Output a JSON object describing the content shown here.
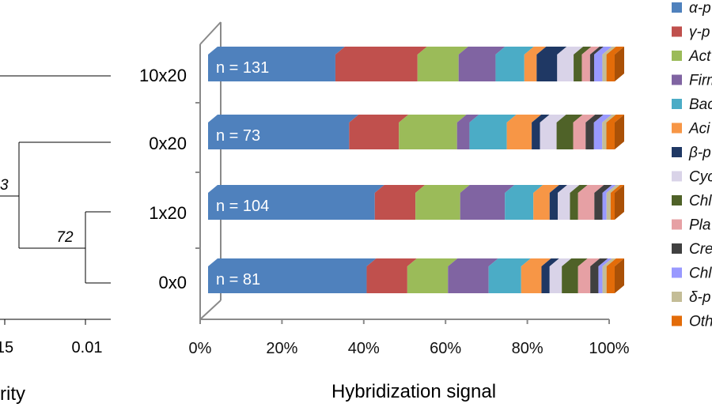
{
  "chart_data": [
    {
      "type": "dendrogram",
      "leaves": [
        "10x20",
        "0x20",
        "1x20",
        "0x0"
      ],
      "support_labels": [
        "3",
        "72"
      ],
      "tick_labels": [
        "15",
        "0.01"
      ],
      "xlabel": "rity"
    },
    {
      "type": "bar",
      "stacked": true,
      "percent": true,
      "xlabel": "Hybridization signal",
      "xlim": [
        0,
        100
      ],
      "x_ticks": [
        "0%",
        "20%",
        "40%",
        "60%",
        "80%",
        "100%"
      ],
      "categories": [
        "10x20",
        "0x20",
        "1x20",
        "0x0"
      ],
      "n_labels": [
        "n = 131",
        "n = 73",
        "n = 104",
        "n = 81"
      ],
      "legend_position": "right",
      "series": [
        {
          "name": "α-p",
          "color": "#4f81bd",
          "values": [
            31,
            34,
            41,
            39
          ]
        },
        {
          "name": "γ-p",
          "color": "#c0504d",
          "values": [
            20,
            12,
            10,
            10
          ]
        },
        {
          "name": "Act",
          "color": "#9bbb59",
          "values": [
            10,
            14,
            11,
            10
          ]
        },
        {
          "name": "Firm",
          "color": "#8064a2",
          "values": [
            9,
            3,
            11,
            10
          ]
        },
        {
          "name": "Bac",
          "color": "#4bacc6",
          "values": [
            7,
            9,
            7,
            8
          ]
        },
        {
          "name": "Aci",
          "color": "#f79646",
          "values": [
            3,
            6,
            4,
            5
          ]
        },
        {
          "name": "β-p",
          "color": "#1f3864",
          "values": [
            5,
            2,
            2,
            2
          ]
        },
        {
          "name": "Cyc",
          "color": "#d9d3e8",
          "values": [
            4,
            4,
            3,
            3
          ]
        },
        {
          "name": "Chl",
          "color": "#4f6228",
          "values": [
            2,
            4,
            2,
            4
          ]
        },
        {
          "name": "Pla",
          "color": "#e6a0a4",
          "values": [
            2,
            3,
            4,
            3
          ]
        },
        {
          "name": "Cre",
          "color": "#404040",
          "values": [
            1,
            2,
            2,
            2
          ]
        },
        {
          "name": "Chl",
          "color": "#9999ff",
          "values": [
            2,
            2,
            1,
            1
          ]
        },
        {
          "name": "δ-p",
          "color": "#c4bd97",
          "values": [
            1,
            1,
            1,
            1
          ]
        },
        {
          "name": "Oth",
          "color": "#e36c09",
          "values": [
            2,
            2,
            1,
            2
          ]
        }
      ]
    }
  ]
}
